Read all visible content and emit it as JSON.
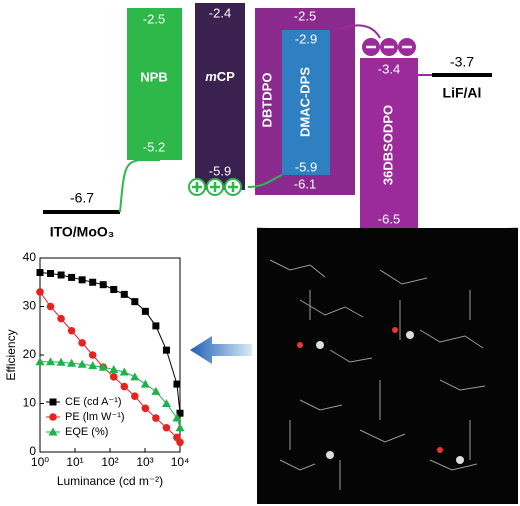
{
  "energy_diagram": {
    "layers": [
      {
        "name": "ITO/MoO₃",
        "levels": [
          "-6.7"
        ]
      },
      {
        "name": "NPB",
        "levels": [
          "-2.5",
          "-5.2"
        ]
      },
      {
        "name_prefix": "m",
        "name": "CP",
        "levels": [
          "-2.4",
          "-5.9"
        ]
      },
      {
        "name": "DBTDPO",
        "levels": [
          "-2.5",
          "-6.1"
        ]
      },
      {
        "name": "DMAC-DPS",
        "levels": [
          "-2.9",
          "-5.9"
        ]
      },
      {
        "name": "36DBSODPO",
        "levels": [
          "-3.4",
          "-6.5"
        ]
      },
      {
        "name": "LiF/Al",
        "levels": [
          "-3.7"
        ]
      }
    ]
  },
  "chart_data": {
    "type": "line",
    "x_log": true,
    "x": [
      1,
      2,
      4,
      8,
      16,
      32,
      64,
      128,
      256,
      512,
      1024,
      2048,
      4096,
      8192,
      10000
    ],
    "series": [
      {
        "name": "CE (cd A⁻¹)",
        "color": "#000000",
        "marker": "square",
        "values": [
          37,
          36.8,
          36.5,
          36,
          35.5,
          35,
          34.5,
          33.5,
          32.5,
          31,
          29,
          26,
          21,
          14,
          8
        ]
      },
      {
        "name": "PE (lm W⁻¹)",
        "color": "#e8231f",
        "marker": "circle",
        "values": [
          33,
          30,
          27.5,
          25,
          22.5,
          20,
          17.5,
          15.5,
          13.5,
          11.5,
          9,
          7,
          5,
          3,
          2
        ]
      },
      {
        "name": "EQE (%)",
        "color": "#1fb24a",
        "marker": "triangle",
        "values": [
          18.6,
          18.6,
          18.5,
          18.3,
          18.1,
          17.8,
          17.5,
          17,
          16.5,
          15.5,
          14,
          12.5,
          10,
          7,
          5
        ]
      }
    ],
    "xlabel": "Luminance (cd m⁻²)",
    "ylabel": "Efficiency",
    "xlim": [
      1,
      10000
    ],
    "ylim": [
      0,
      40
    ],
    "xticks": [
      {
        "value": 1,
        "label": "10⁰"
      },
      {
        "value": 10,
        "label": "10¹"
      },
      {
        "value": 100,
        "label": "10²"
      },
      {
        "value": 1000,
        "label": "10³"
      },
      {
        "value": 10000,
        "label": "10⁴"
      }
    ],
    "yticks": [
      0,
      10,
      20,
      30,
      40
    ],
    "legend": "lower left"
  }
}
